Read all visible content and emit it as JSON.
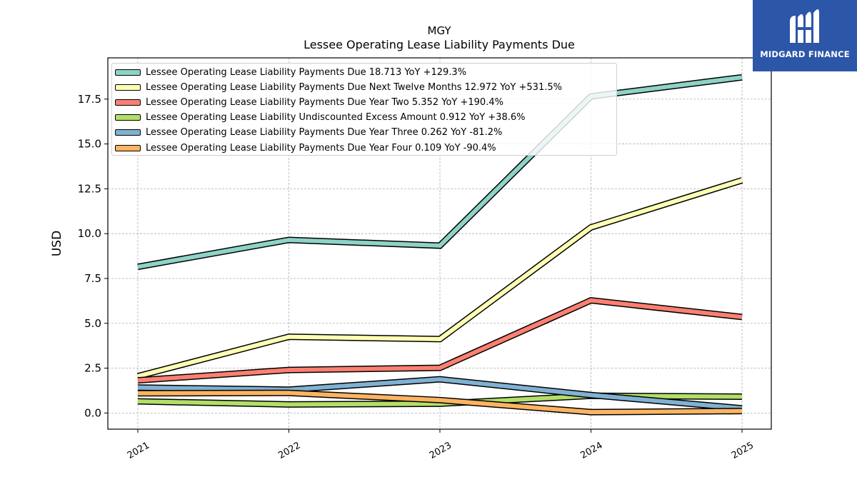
{
  "ticker": "MGY",
  "logo": {
    "text": "MIDGARD FINANCE",
    "icon": "midgard-logo-icon",
    "bg_color": "#2c56a8"
  },
  "chart_data": {
    "type": "line",
    "title": "MGY",
    "subtitle": "Lessee Operating Lease Liability Payments Due",
    "xlabel": "",
    "ylabel": "USD",
    "x": [
      "2021",
      "2022",
      "2023",
      "2024",
      "2025"
    ],
    "ylim": [
      -0.9,
      19.8
    ],
    "yticks": [
      0.0,
      2.5,
      5.0,
      7.5,
      10.0,
      12.5,
      15.0,
      17.5
    ],
    "ytick_labels": [
      "0.0",
      "2.5",
      "5.0",
      "7.5",
      "10.0",
      "12.5",
      "15.0",
      "17.5"
    ],
    "grid": true,
    "legend_position": "top-left",
    "series": [
      {
        "name": "Lessee Operating Lease Liability Payments Due",
        "legend": "Lessee Operating Lease Liability Payments Due  18.713 YoY +129.3%",
        "color": "#8dd3c7",
        "values": [
          8.15,
          9.65,
          9.33,
          17.65,
          18.713
        ]
      },
      {
        "name": "Lessee Operating Lease Liability Payments Due Next Twelve Months",
        "legend": "Lessee Operating Lease Liability Payments Due Next Twelve Months  12.972 YoY +531.5%",
        "color": "#ffffb3",
        "values": [
          2.05,
          4.25,
          4.12,
          10.35,
          12.972
        ]
      },
      {
        "name": "Lessee Operating Lease Liability Payments Due Year Two",
        "legend": "Lessee Operating Lease Liability Payments Due Year Two  5.352 YoY +190.4%",
        "color": "#fb8072",
        "values": [
          1.82,
          2.4,
          2.52,
          6.28,
          5.352
        ]
      },
      {
        "name": "Lessee Operating Lease Liability Undiscounted Excess Amount",
        "legend": "Lessee Operating Lease Liability Undiscounted Excess Amount  0.912 YoY +38.6%",
        "color": "#b3de69",
        "values": [
          0.65,
          0.48,
          0.52,
          0.96,
          0.912
        ]
      },
      {
        "name": "Lessee Operating Lease Liability Payments Due Year Three",
        "legend": "Lessee Operating Lease Liability Payments Due Year Three  0.262 YoY -81.2%",
        "color": "#80b1d3",
        "values": [
          1.42,
          1.3,
          1.88,
          1.0,
          0.262
        ]
      },
      {
        "name": "Lessee Operating Lease Liability Payments Due Year Four",
        "legend": "Lessee Operating Lease Liability Payments Due Year Four  0.109 YoY -90.4%",
        "color": "#fdb462",
        "values": [
          1.1,
          1.12,
          0.72,
          0.05,
          0.109
        ]
      }
    ]
  }
}
